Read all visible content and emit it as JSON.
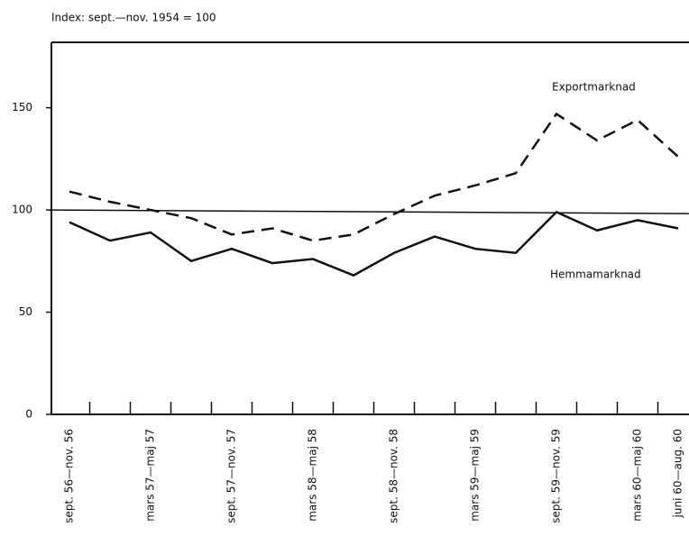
{
  "chart_data": {
    "type": "line",
    "title": "Index: sept.—nov. 1954 = 100",
    "categories": [
      "sept. 56—nov. 56",
      null,
      "mars 57—maj 57",
      null,
      "sept. 57—nov. 57",
      null,
      "mars 58—maj 58",
      null,
      "sept. 58—nov. 58",
      null,
      "mars 59—maj 59",
      null,
      "sept. 59—nov. 59",
      null,
      "mars 60—maj 60",
      "juni 60—aug. 60"
    ],
    "series": [
      {
        "name": "Exportmarknad",
        "color": "#111111",
        "dash": true,
        "values": [
          109,
          104,
          100,
          96,
          88,
          91,
          85,
          88,
          98,
          107,
          112,
          118,
          147,
          134,
          144,
          126
        ]
      },
      {
        "name": "Hemmamarknad",
        "color": "#111111",
        "dash": false,
        "values": [
          94,
          85,
          89,
          75,
          81,
          74,
          76,
          68,
          79,
          87,
          81,
          79,
          99,
          90,
          95,
          91
        ]
      }
    ],
    "reference_line": 100,
    "ylim": [
      0,
      182
    ],
    "yticks": [
      0,
      50,
      100,
      150
    ],
    "grid": false
  }
}
